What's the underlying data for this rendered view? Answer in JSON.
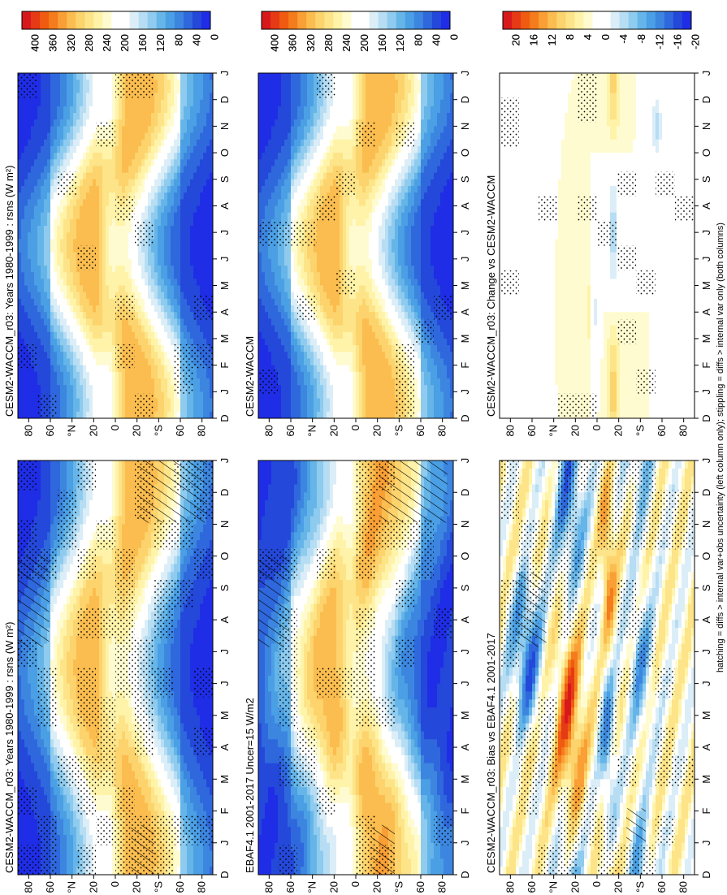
{
  "footnote": "hatching = diffs > internal var+obs uncertainty (left column only); stippling = diffs > internal var only (both columns)",
  "months": [
    "D",
    "J",
    "F",
    "M",
    "A",
    "M",
    "J",
    "J",
    "A",
    "S",
    "O",
    "N",
    "D",
    "J"
  ],
  "lat_ticks": [
    "80",
    "60",
    "°N",
    "20",
    "0",
    "20",
    "°S",
    "60",
    "80"
  ],
  "colorbar_abs": {
    "labels": [
      "400",
      "360",
      "320",
      "280",
      "240",
      "200",
      "160",
      "120",
      "80",
      "40",
      "0"
    ]
  },
  "colorbar_diff": {
    "labels": [
      "20",
      "16",
      "12",
      "8",
      "4",
      "0",
      "-4",
      "-8",
      "-12",
      "-16",
      "-20"
    ]
  },
  "chart_data": [
    {
      "type": "heatmap",
      "title": "CESM2-WACCM_r03: Years 1980-1999 : rsns (W m²)",
      "x": "month",
      "y": "latitude",
      "ylim": [
        -90,
        90
      ],
      "zlim": [
        0,
        400
      ],
      "stippling": true,
      "hatching": true
    },
    {
      "type": "heatmap",
      "title": "CESM2-WACCM_r03: Years 1980-1999 : rsns (W m²)",
      "x": "month",
      "y": "latitude",
      "ylim": [
        -90,
        90
      ],
      "zlim": [
        0,
        400
      ],
      "stippling": true
    },
    {
      "type": "heatmap",
      "title": "EBAF4.1 2001-2017 Uncer=15 W/m2",
      "x": "month",
      "y": "latitude",
      "ylim": [
        -90,
        90
      ],
      "zlim": [
        0,
        400
      ],
      "stippling": true,
      "hatching": true
    },
    {
      "type": "heatmap",
      "title": "CESM2-WACCM",
      "x": "month",
      "y": "latitude",
      "ylim": [
        -90,
        90
      ],
      "zlim": [
        0,
        400
      ],
      "stippling": true
    },
    {
      "type": "heatmap",
      "title": "CESM2-WACCM_r03: Bias vs EBAF4.1 2001-2017",
      "x": "month",
      "y": "latitude",
      "ylim": [
        -90,
        90
      ],
      "zlim": [
        -20,
        20
      ],
      "stippling": true,
      "hatching": true
    },
    {
      "type": "heatmap",
      "title": "CESM2-WACCM_r03: Change vs CESM2-WACCM",
      "x": "month",
      "y": "latitude",
      "ylim": [
        -90,
        90
      ],
      "zlim": [
        -20,
        20
      ],
      "stippling": true
    }
  ]
}
